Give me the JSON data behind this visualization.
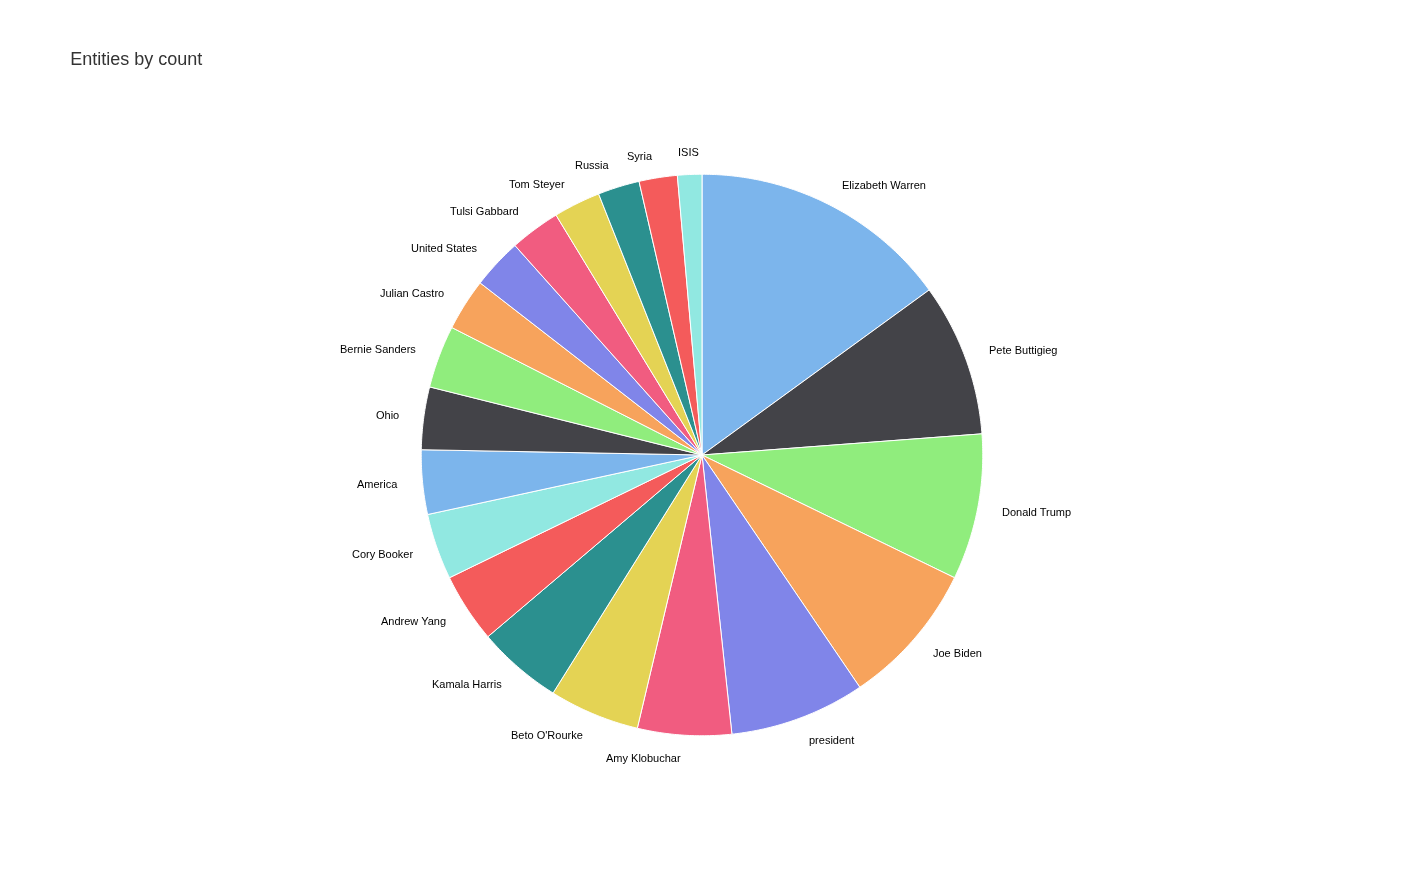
{
  "chart_data": {
    "type": "pie",
    "title": "Entities by count",
    "categories": [
      "Elizabeth Warren",
      "Pete Buttigieg",
      "Donald Trump",
      "Joe Biden",
      "president",
      "Amy Klobuchar",
      "Beto O'Rourke",
      "Kamala Harris",
      "Andrew Yang",
      "Cory Booker",
      "America",
      "Ohio",
      "Bernie Sanders",
      "Julian Castro",
      "United States",
      "Tulsi Gabbard",
      "Tom Steyer",
      "Russia",
      "Syria",
      "ISIS"
    ],
    "values": [
      15.0,
      8.8,
      8.4,
      8.3,
      7.8,
      5.4,
      5.2,
      4.9,
      4.0,
      3.8,
      3.7,
      3.6,
      3.6,
      3.0,
      2.9,
      2.9,
      2.7,
      2.4,
      2.2,
      1.4
    ],
    "colors": [
      "#7cb5ec",
      "#434348",
      "#90ed7d",
      "#f7a35c",
      "#8085e9",
      "#f15c80",
      "#e4d354",
      "#2b908f",
      "#f45b5b",
      "#91e8e1",
      "#7cb5ec",
      "#434348",
      "#90ed7d",
      "#f7a35c",
      "#8085e9",
      "#f15c80",
      "#e4d354",
      "#2b908f",
      "#f45b5b",
      "#91e8e1"
    ],
    "legend": false
  }
}
